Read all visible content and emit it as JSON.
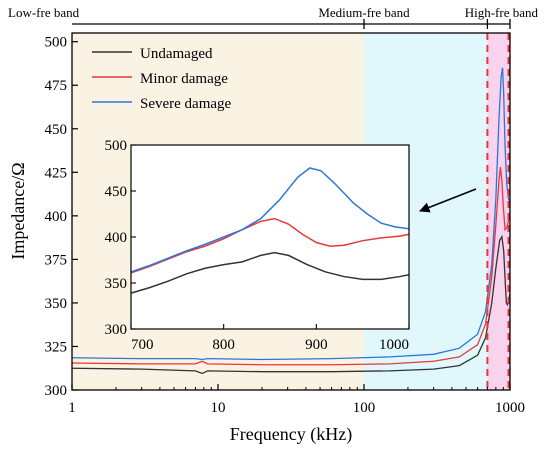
{
  "chart_data": [
    {
      "type": "line",
      "xlabel": "Frequency (kHz)",
      "ylabel": "Impedance/Ω",
      "xscale": "log",
      "xlim": [
        1,
        1000
      ],
      "ylim": [
        300,
        505
      ],
      "x_ticks": [
        1,
        10,
        100,
        1000
      ],
      "x_tick_labels": [
        "1",
        "10",
        "100",
        "1000"
      ],
      "y_ticks": [
        300,
        325,
        350,
        375,
        400,
        425,
        450,
        475,
        500
      ],
      "y_tick_labels": [
        "300",
        "325",
        "350",
        "375",
        "400",
        "425",
        "450",
        "475",
        "500"
      ],
      "bands": [
        {
          "label": "Low-fre band",
          "range": [
            1,
            100
          ],
          "color": "#faf3e3"
        },
        {
          "label": "Medium-fre band",
          "range": [
            100,
            700
          ],
          "color": "#e0f8fb"
        },
        {
          "label": "High-fre band",
          "range": [
            700,
            1000
          ],
          "color": "#f9d2ee"
        }
      ],
      "legend_position": "top-left",
      "series": [
        {
          "name": "Undamaged",
          "color": "#333333",
          "points": [
            [
              1,
              312.5
            ],
            [
              3,
              312
            ],
            [
              7,
              311
            ],
            [
              7.8,
              309.5
            ],
            [
              8.5,
              311
            ],
            [
              20,
              310.5
            ],
            [
              60,
              310.5
            ],
            [
              150,
              311
            ],
            [
              300,
              312
            ],
            [
              450,
              314
            ],
            [
              600,
              320
            ],
            [
              680,
              330
            ],
            [
              750,
              350
            ],
            [
              800,
              370
            ],
            [
              850,
              386
            ],
            [
              880,
              388
            ],
            [
              905,
              380
            ],
            [
              930,
              360
            ],
            [
              945,
              350
            ],
            [
              960,
              349
            ],
            [
              980,
              352
            ],
            [
              1000,
              355
            ]
          ]
        },
        {
          "name": "Minor damage",
          "color": "#e8383d",
          "points": [
            [
              1,
              315.5
            ],
            [
              3,
              315
            ],
            [
              7,
              315
            ],
            [
              7.8,
              316.5
            ],
            [
              8.5,
              315
            ],
            [
              20,
              314.5
            ],
            [
              60,
              314.5
            ],
            [
              150,
              315
            ],
            [
              300,
              316.5
            ],
            [
              450,
              319
            ],
            [
              600,
              326
            ],
            [
              680,
              338
            ],
            [
              750,
              365
            ],
            [
              800,
              395
            ],
            [
              840,
              420
            ],
            [
              860,
              428
            ],
            [
              880,
              420
            ],
            [
              900,
              405
            ],
            [
              925,
              392
            ],
            [
              950,
              393
            ],
            [
              975,
              397
            ],
            [
              1000,
              402
            ]
          ]
        },
        {
          "name": "Severe damage",
          "color": "#2a78d6",
          "points": [
            [
              1,
              318.5
            ],
            [
              3,
              318
            ],
            [
              7,
              318
            ],
            [
              7.8,
              317.5
            ],
            [
              8.5,
              318
            ],
            [
              20,
              317.5
            ],
            [
              60,
              318
            ],
            [
              150,
              319
            ],
            [
              300,
              320.5
            ],
            [
              450,
              324
            ],
            [
              600,
              332
            ],
            [
              680,
              345
            ],
            [
              750,
              372
            ],
            [
              800,
              410
            ],
            [
              840,
              455
            ],
            [
              870,
              480
            ],
            [
              890,
              485
            ],
            [
              905,
              470
            ],
            [
              925,
              440
            ],
            [
              950,
              418
            ],
            [
              975,
              410
            ],
            [
              1000,
              408
            ]
          ]
        }
      ]
    },
    {
      "type": "line",
      "inset": true,
      "xlim": [
        700,
        1000
      ],
      "ylim": [
        300,
        500
      ],
      "x_ticks": [
        700,
        800,
        900,
        1000
      ],
      "x_tick_labels": [
        "700",
        "800",
        "900",
        "1000"
      ],
      "y_ticks": [
        300,
        350,
        400,
        450,
        500
      ],
      "y_tick_labels": [
        "300",
        "350",
        "400",
        "450",
        "500"
      ],
      "series": [
        {
          "color": "#333333",
          "points": [
            [
              700,
              339
            ],
            [
              720,
              345
            ],
            [
              740,
              352
            ],
            [
              760,
              360
            ],
            [
              780,
              366
            ],
            [
              800,
              370
            ],
            [
              820,
              373
            ],
            [
              840,
              380
            ],
            [
              855,
              383
            ],
            [
              870,
              380
            ],
            [
              890,
              370
            ],
            [
              910,
              362
            ],
            [
              930,
              357
            ],
            [
              950,
              354
            ],
            [
              970,
              354
            ],
            [
              990,
              357
            ],
            [
              1000,
              359
            ]
          ]
        },
        {
          "color": "#e8383d",
          "points": [
            [
              700,
              361
            ],
            [
              720,
              368
            ],
            [
              740,
              376
            ],
            [
              760,
              384
            ],
            [
              780,
              390
            ],
            [
              800,
              398
            ],
            [
              820,
              408
            ],
            [
              840,
              417
            ],
            [
              855,
              420
            ],
            [
              870,
              414
            ],
            [
              885,
              403
            ],
            [
              900,
              394
            ],
            [
              915,
              390
            ],
            [
              930,
              391
            ],
            [
              950,
              396
            ],
            [
              970,
              399
            ],
            [
              990,
              401
            ],
            [
              1000,
              403
            ]
          ]
        },
        {
          "color": "#2a78d6",
          "points": [
            [
              700,
              362
            ],
            [
              720,
              369
            ],
            [
              740,
              377
            ],
            [
              760,
              385
            ],
            [
              780,
              392
            ],
            [
              800,
              400
            ],
            [
              820,
              408
            ],
            [
              840,
              420
            ],
            [
              860,
              440
            ],
            [
              880,
              465
            ],
            [
              893,
              475
            ],
            [
              905,
              472
            ],
            [
              920,
              458
            ],
            [
              940,
              437
            ],
            [
              955,
              425
            ],
            [
              970,
              415
            ],
            [
              985,
              411
            ],
            [
              1000,
              409
            ]
          ]
        }
      ]
    }
  ]
}
